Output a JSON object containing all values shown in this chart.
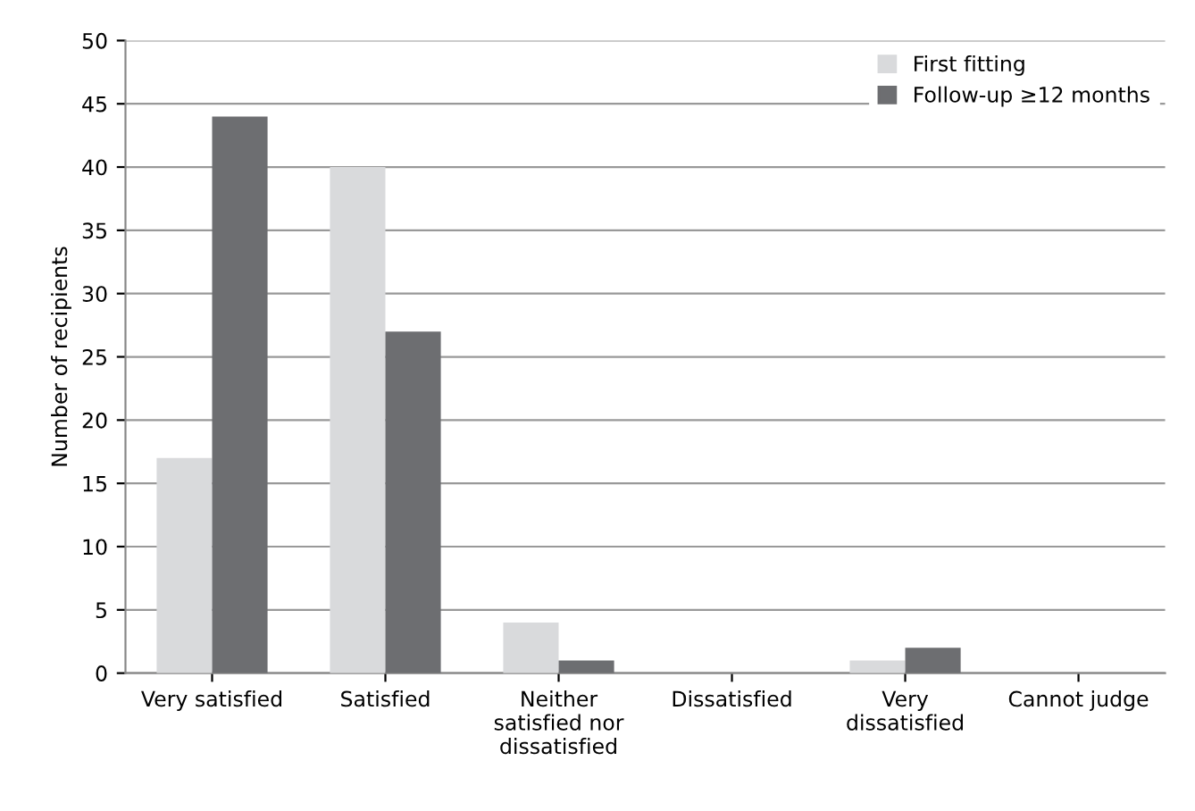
{
  "chart_data": {
    "type": "bar",
    "ylabel": "Number of recipients",
    "categories": [
      "Very satisfied",
      "Satisfied",
      "Neither\nsatisfied nor\ndissatisfied",
      "Dissatisfied",
      "Very\ndissatisfied",
      "Cannot judge"
    ],
    "series": [
      {
        "name": "First fitting",
        "color": "#d9dadc",
        "values": [
          17,
          40,
          4,
          0,
          1,
          0
        ]
      },
      {
        "name": "Follow-up ≥12 months",
        "color": "#6d6e71",
        "values": [
          44,
          27,
          1,
          0,
          2,
          0
        ]
      }
    ],
    "ylim": [
      0,
      50
    ],
    "yticks": [
      0,
      5,
      10,
      15,
      20,
      25,
      30,
      35,
      40,
      45,
      50
    ],
    "grid": "y",
    "legend": "top right"
  }
}
